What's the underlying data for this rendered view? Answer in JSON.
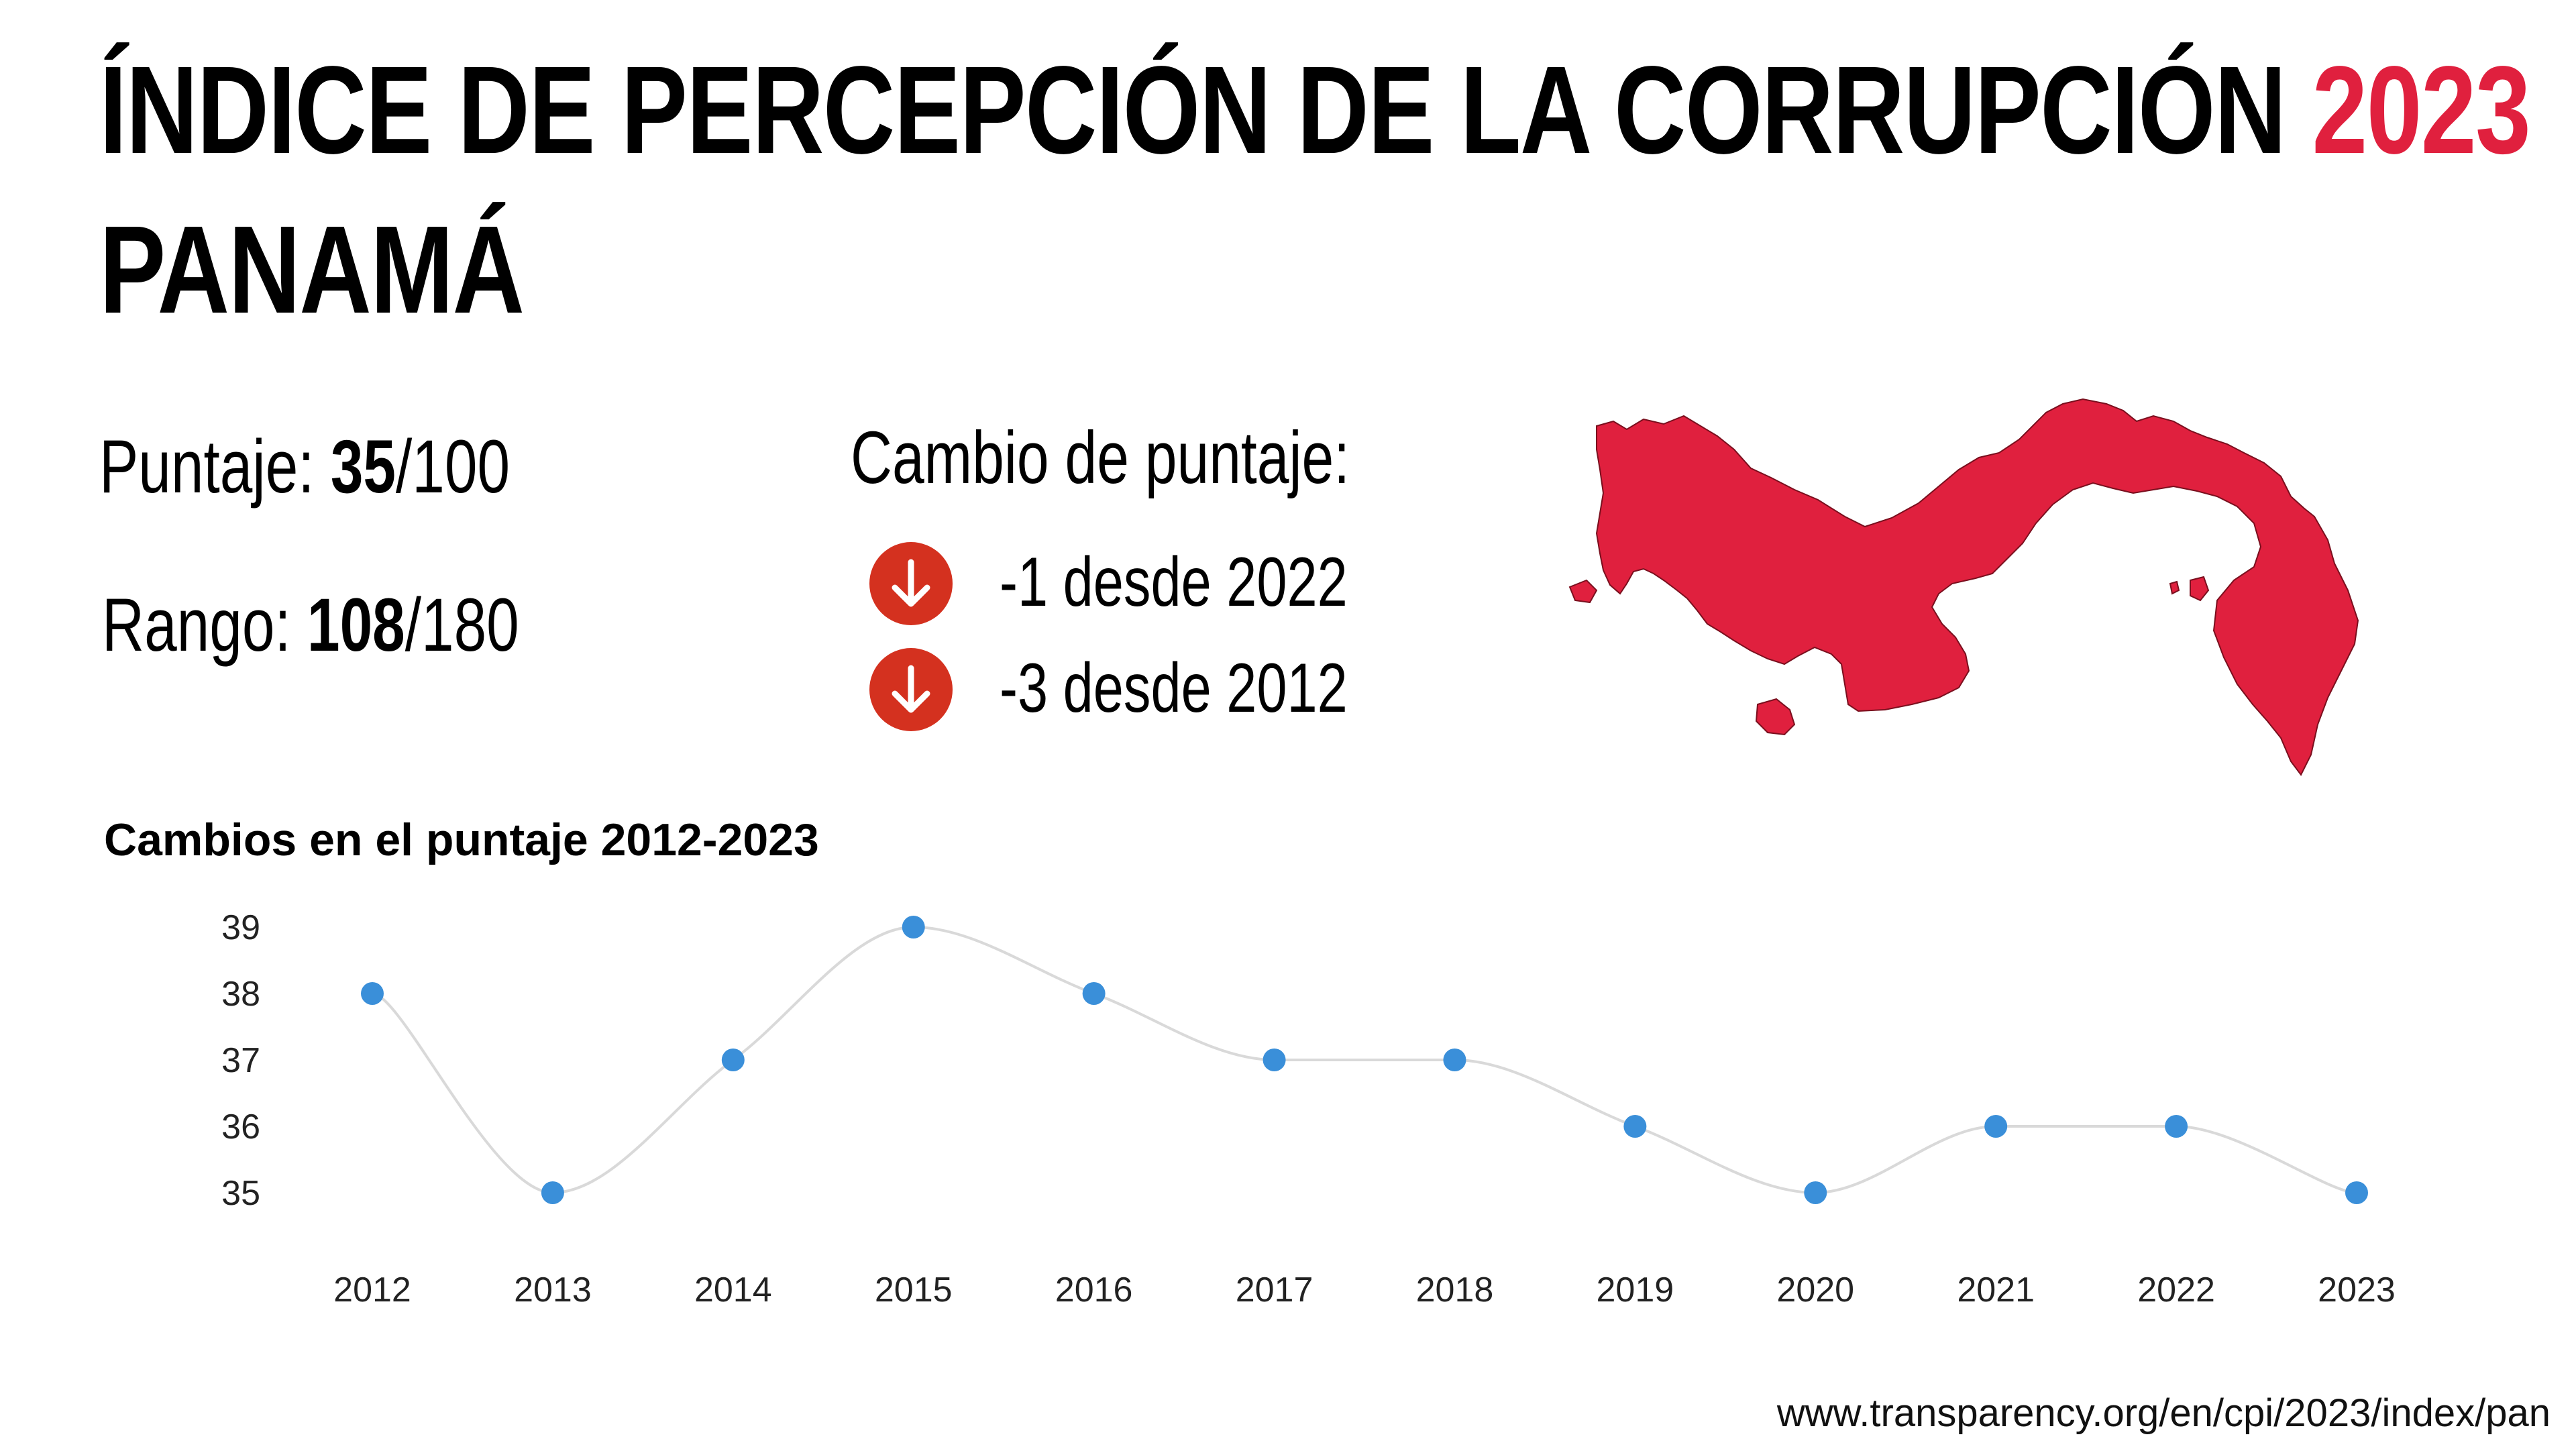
{
  "header": {
    "title_main": "ÍNDICE DE PERCEPCIÓN DE LA CORRUPCIÓN",
    "title_year": "2023",
    "country": "PANAMÁ"
  },
  "stats": {
    "score_label": "Puntaje:",
    "score_value": "35",
    "score_total": "/100",
    "rank_label": "Rango:",
    "rank_value": "108",
    "rank_total": "/180"
  },
  "score_change": {
    "heading": "Cambio de puntaje:",
    "items": [
      {
        "text": "-1 desde 2022",
        "icon": "arrow-down-icon"
      },
      {
        "text": "-3 desde 2012",
        "icon": "arrow-down-icon"
      }
    ]
  },
  "colors": {
    "accent": "#e0203e",
    "arrow_badge": "#d4311f",
    "map_fill": "#e0203e",
    "point": "#3a8fd9",
    "line": "#d9d9d9"
  },
  "chart_data": {
    "type": "line",
    "title": "Cambios en el puntaje 2012-2023",
    "x": [
      "2012",
      "2013",
      "2014",
      "2015",
      "2016",
      "2017",
      "2018",
      "2019",
      "2020",
      "2021",
      "2022",
      "2023"
    ],
    "y": [
      38,
      35,
      37,
      39,
      38,
      37,
      37,
      36,
      35,
      36,
      36,
      35
    ],
    "yticks": [
      39,
      38,
      37,
      36,
      35
    ],
    "ylim": [
      35,
      39
    ],
    "xlabel": "",
    "ylabel": "",
    "grid": false,
    "smooth": true
  },
  "footer": {
    "source": "www.transparency.org/en/cpi/2023/index/pan"
  }
}
